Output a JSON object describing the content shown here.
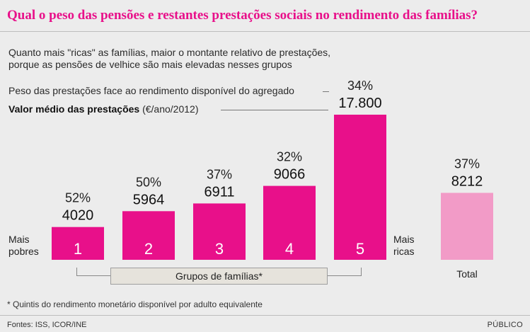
{
  "header": {
    "title": "Qual o peso das pensões e restantes prestações sociais no rendimento das famílias?",
    "subtitle_line1": "Quanto mais \"ricas\" as famílias, maior o montante relativo de prestações,",
    "subtitle_line2": "porque as pensões de velhice são mais elevadas nesses grupos"
  },
  "legend": {
    "pct_label": "Peso das prestações face ao rendimento disponível do agregado",
    "value_label_bold": "Valor médio das prestações",
    "value_label_unit": " (€/ano/2012)"
  },
  "axis": {
    "left_label_line1": "Mais",
    "left_label_line2": "pobres",
    "right_label_line1": "Mais",
    "right_label_line2": "ricas",
    "group_label": "Grupos de famílias*",
    "total_label": "Total"
  },
  "colors": {
    "bar": "#e8108a",
    "total_bar": "#f29bc7",
    "title": "#e8108a"
  },
  "chart_data": {
    "type": "bar",
    "categories": [
      "1",
      "2",
      "3",
      "4",
      "5",
      "Total"
    ],
    "series": [
      {
        "name": "Valor médio das prestações (€/ano/2012)",
        "values": [
          4020,
          5964,
          6911,
          9066,
          17800,
          8212
        ],
        "value_labels": [
          "4020",
          "5964",
          "6911",
          "9066",
          "17.800",
          "8212"
        ]
      },
      {
        "name": "Peso das prestações face ao rendimento disponível do agregado",
        "values": [
          52,
          50,
          37,
          32,
          34,
          37
        ],
        "value_labels": [
          "52%",
          "50%",
          "37%",
          "32%",
          "34%",
          "37%"
        ]
      }
    ],
    "ylim": [
      0,
      17800
    ]
  },
  "footer": {
    "footnote": "* Quintis do rendimento monetário disponível por adulto equivalente",
    "source": "Fontes: ISS, ICOR/INE",
    "brand": "PÚBLICO"
  }
}
